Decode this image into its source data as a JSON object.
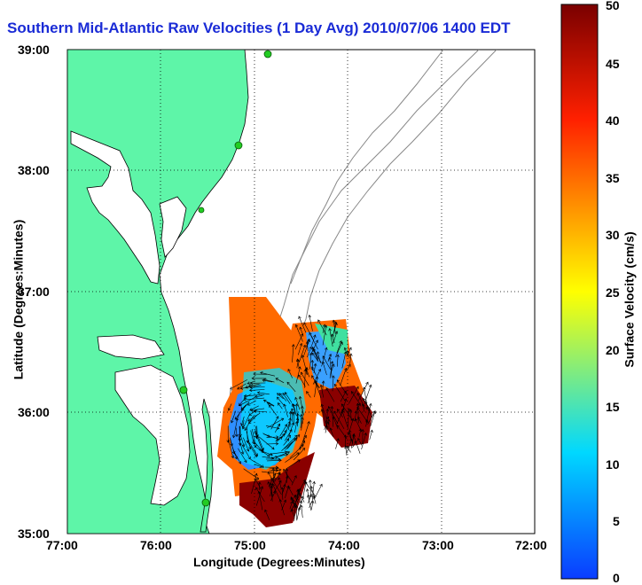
{
  "title": "Southern Mid-Atlantic Raw Velocities (1 Day Avg) 2010/07/06 1400 EDT",
  "axes": {
    "xlabel": "Longitude (Degrees:Minutes)",
    "ylabel": "Latitude (Degrees:Minutes)",
    "x_ticks": [
      "77:00",
      "76:00",
      "75:00",
      "74:00",
      "73:00",
      "72:00"
    ],
    "y_ticks": [
      "39:00",
      "38:00",
      "37:00",
      "36:00",
      "35:00"
    ],
    "x_range_deg_west": [
      77,
      72
    ],
    "y_range_deg_north": [
      35,
      39
    ],
    "grid": "dotted"
  },
  "colorbar": {
    "label": "Surface Velocity (cm/s)",
    "ticks": [
      "50",
      "45",
      "40",
      "35",
      "30",
      "25",
      "20",
      "15",
      "10",
      "5",
      "0"
    ],
    "range": [
      0,
      50
    ],
    "colors": [
      "#0a3cff",
      "#00d8ff",
      "#ffff00",
      "#ff2000",
      "#7a0000"
    ]
  },
  "colors": {
    "land": "#5ef5a8",
    "coastline": "#000000",
    "bathymetry": "#888888",
    "stations": "#22cc22",
    "vectors": "#000000",
    "title": "#1a2bd6"
  }
}
